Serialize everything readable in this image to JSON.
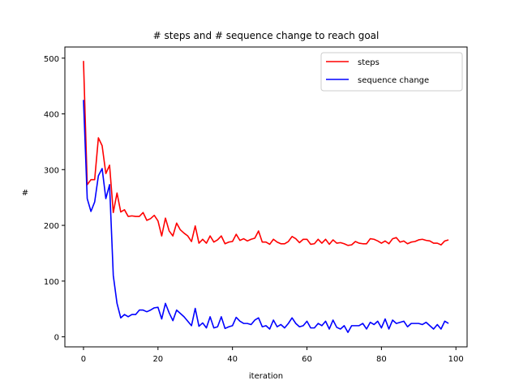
{
  "chart_data": {
    "type": "line",
    "title": "# steps and # sequence change to reach goal",
    "xlabel": "iteration",
    "ylabel": "#",
    "xlim": [
      -5,
      103
    ],
    "ylim": [
      -18,
      520
    ],
    "xticks": [
      0,
      20,
      40,
      60,
      80,
      100
    ],
    "yticks": [
      0,
      100,
      200,
      300,
      400,
      500
    ],
    "grid": false,
    "legend_position": "top-right",
    "x": [
      0,
      1,
      2,
      3,
      4,
      5,
      6,
      7,
      8,
      9,
      10,
      11,
      12,
      13,
      14,
      15,
      16,
      17,
      18,
      19,
      20,
      21,
      22,
      23,
      24,
      25,
      26,
      27,
      28,
      29,
      30,
      31,
      32,
      33,
      34,
      35,
      36,
      37,
      38,
      39,
      40,
      41,
      42,
      43,
      44,
      45,
      46,
      47,
      48,
      49,
      50,
      51,
      52,
      53,
      54,
      55,
      56,
      57,
      58,
      59,
      60,
      61,
      62,
      63,
      64,
      65,
      66,
      67,
      68,
      69,
      70,
      71,
      72,
      73,
      74,
      75,
      76,
      77,
      78,
      79,
      80,
      81,
      82,
      83,
      84,
      85,
      86,
      87,
      88,
      89,
      90,
      91,
      92,
      93,
      94,
      95,
      96,
      97,
      98
    ],
    "series": [
      {
        "name": "steps",
        "color": "#ff0000",
        "values": [
          495,
          273,
          282,
          282,
          357,
          343,
          293,
          308,
          223,
          258,
          224,
          228,
          216,
          217,
          216,
          216,
          223,
          209,
          212,
          218,
          208,
          181,
          213,
          190,
          181,
          204,
          192,
          186,
          181,
          171,
          199,
          168,
          175,
          168,
          181,
          170,
          174,
          181,
          167,
          170,
          171,
          184,
          173,
          176,
          172,
          175,
          177,
          190,
          170,
          170,
          166,
          175,
          170,
          167,
          167,
          171,
          180,
          176,
          169,
          175,
          175,
          166,
          167,
          175,
          168,
          175,
          166,
          174,
          168,
          169,
          167,
          164,
          165,
          171,
          168,
          167,
          167,
          176,
          175,
          172,
          168,
          172,
          167,
          176,
          178,
          170,
          172,
          167,
          170,
          171,
          174,
          175,
          173,
          172,
          168,
          168,
          165,
          172,
          174
        ]
      },
      {
        "name": "sequence change",
        "color": "#0000ff",
        "values": [
          425,
          248,
          225,
          242,
          289,
          302,
          248,
          273,
          110,
          60,
          34,
          40,
          36,
          40,
          40,
          48,
          48,
          45,
          48,
          52,
          53,
          32,
          60,
          43,
          29,
          48,
          42,
          36,
          28,
          20,
          51,
          19,
          25,
          16,
          36,
          16,
          18,
          36,
          15,
          18,
          20,
          35,
          28,
          24,
          24,
          22,
          30,
          34,
          18,
          20,
          14,
          30,
          18,
          22,
          16,
          24,
          34,
          24,
          18,
          20,
          28,
          16,
          16,
          24,
          20,
          28,
          14,
          30,
          17,
          14,
          20,
          8,
          20,
          20,
          20,
          24,
          14,
          26,
          22,
          28,
          16,
          32,
          14,
          30,
          24,
          26,
          28,
          18,
          24,
          24,
          24,
          22,
          26,
          20,
          14,
          22,
          14,
          28,
          24
        ]
      }
    ]
  }
}
